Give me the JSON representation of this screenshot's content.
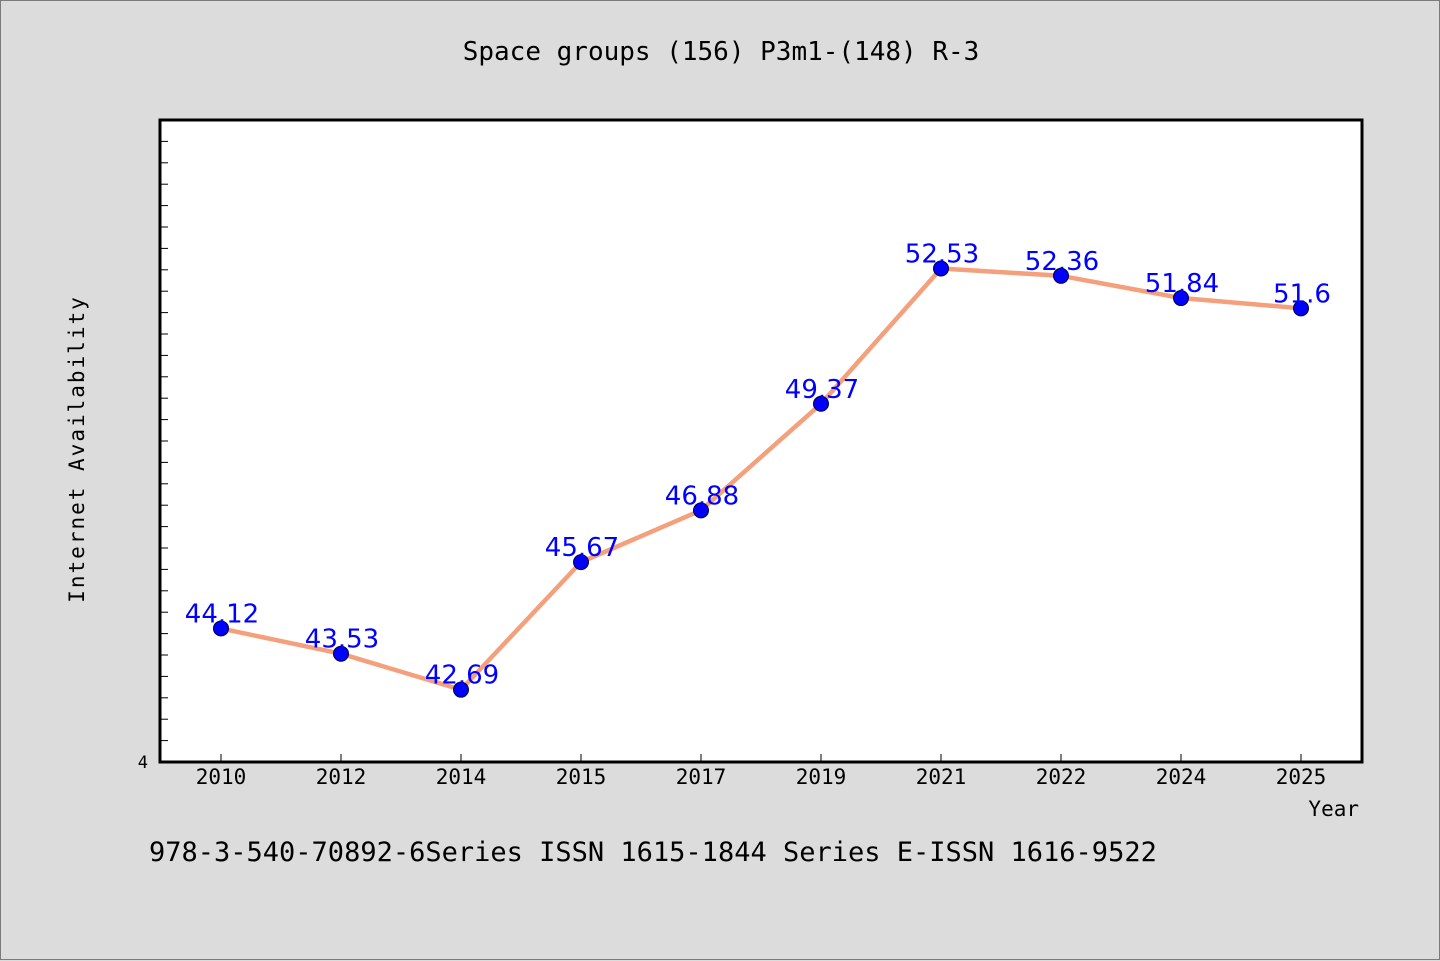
{
  "chart_data": {
    "type": "line",
    "title": "Space groups (156) P3m1-(148) R-3",
    "xlabel": "Year",
    "ylabel": "Internet Availability",
    "categories": [
      "2010",
      "2012",
      "2014",
      "2015",
      "2017",
      "2019",
      "2021",
      "2022",
      "2024",
      "2025"
    ],
    "series": [
      {
        "values": [
          44.12,
          43.53,
          42.69,
          45.67,
          46.88,
          49.37,
          52.53,
          52.36,
          51.84,
          51.6
        ],
        "data_labels": [
          "44.12",
          "43.53",
          "42.69",
          "45.67",
          "46.88",
          "49.37",
          "52.53",
          "52.36",
          "51.84",
          "51.6"
        ],
        "line_color": "#f4a07c",
        "marker_color": "#0000ff"
      }
    ],
    "y_tick_labels": [
      "4"
    ],
    "ylim": [
      41.0,
      56.0
    ],
    "grid": false,
    "legend": "none",
    "label_color": "#0000ff"
  },
  "footer": {
    "text": "978-3-540-70892-6Series ISSN 1615-1844 Series E-ISSN 1616-9522"
  }
}
